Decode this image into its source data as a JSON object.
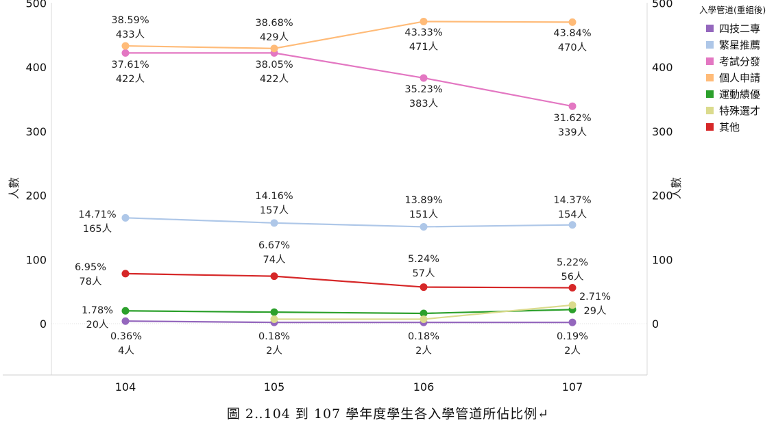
{
  "chart_data": {
    "type": "line",
    "categories": [
      "104",
      "105",
      "106",
      "107"
    ],
    "ylabel": "人數",
    "ylabel_right": "人數",
    "y_ticks": [
      "500",
      "400",
      "300",
      "200",
      "100",
      "0"
    ],
    "ylim": [
      -80,
      500
    ],
    "legend_title": "入學管道(重組後)",
    "legend_position": "right",
    "series": [
      {
        "name": "四技二專",
        "color": "#9467bd",
        "values": [
          4,
          2,
          2,
          2
        ],
        "labels": [
          [
            "0.36%",
            "4人"
          ],
          [
            "0.18%",
            "2人"
          ],
          [
            "0.18%",
            "2人"
          ],
          [
            "0.19%",
            "2人"
          ]
        ]
      },
      {
        "name": "繁星推薦",
        "color": "#aec7e8",
        "values": [
          165,
          157,
          151,
          154
        ],
        "labels": [
          [
            "14.71%",
            "165人"
          ],
          [
            "14.16%",
            "157人"
          ],
          [
            "13.89%",
            "151人"
          ],
          [
            "14.37%",
            "154人"
          ]
        ]
      },
      {
        "name": "考試分發",
        "color": "#e377c2",
        "values": [
          422,
          422,
          383,
          339
        ],
        "labels": [
          [
            "37.61%",
            "422人"
          ],
          [
            "38.05%",
            "422人"
          ],
          [
            "35.23%",
            "383人"
          ],
          [
            "31.62%",
            "339人"
          ]
        ]
      },
      {
        "name": "個人申請",
        "color": "#ffbb78",
        "values": [
          433,
          429,
          471,
          470
        ],
        "labels": [
          [
            "38.59%",
            "433人"
          ],
          [
            "38.68%",
            "429人"
          ],
          [
            "43.33%",
            "471人"
          ],
          [
            "43.84%",
            "470人"
          ]
        ]
      },
      {
        "name": "運動績優",
        "color": "#2ca02c",
        "values": [
          20,
          18,
          16,
          22
        ],
        "labels": [
          [
            "1.78%",
            "20人"
          ],
          null,
          null,
          null
        ]
      },
      {
        "name": "特殊選才",
        "color": "#dbdb8d",
        "values": [
          null,
          7,
          7,
          29
        ],
        "labels": [
          null,
          null,
          null,
          [
            "2.71%",
            "29人"
          ]
        ]
      },
      {
        "name": "其他",
        "color": "#d62728",
        "values": [
          78,
          74,
          57,
          56
        ],
        "labels": [
          [
            "6.95%",
            "78人"
          ],
          [
            "6.67%",
            "74人"
          ],
          [
            "5.24%",
            "57人"
          ],
          [
            "5.22%",
            "56人"
          ]
        ]
      }
    ]
  },
  "caption": "圖 2‥104 到 107 學年度學生各入學管道所佔比例↵"
}
